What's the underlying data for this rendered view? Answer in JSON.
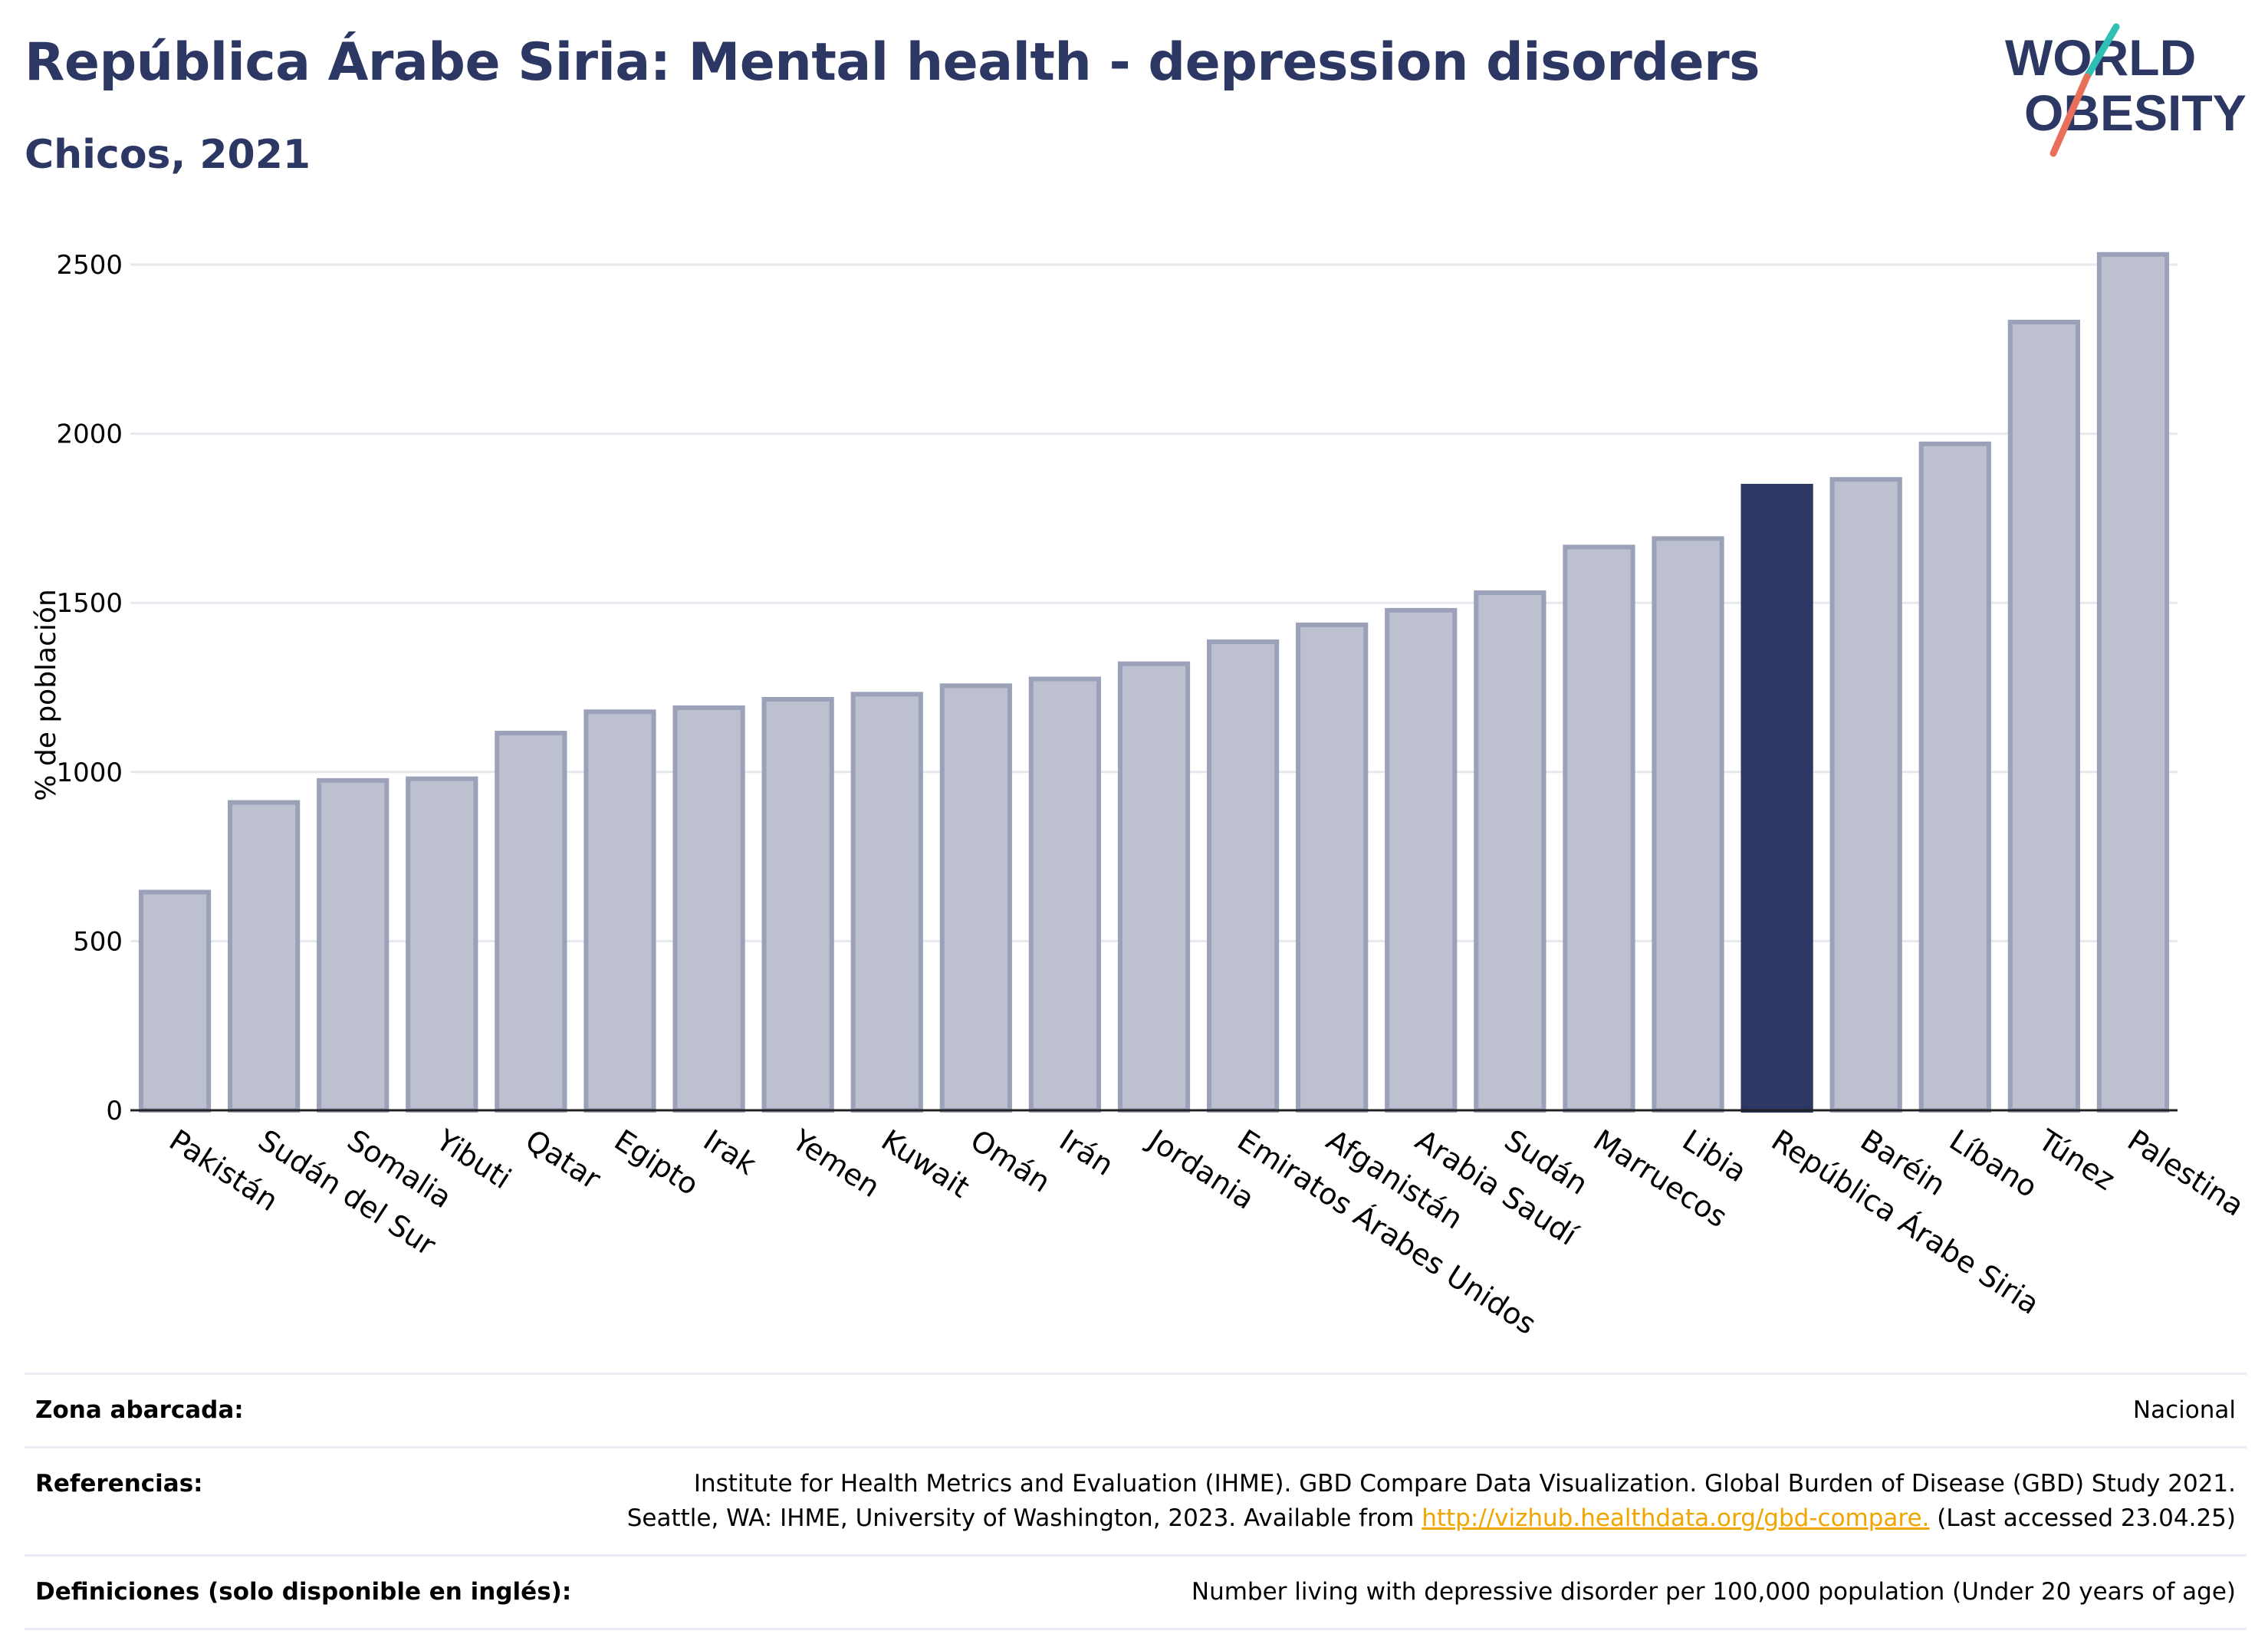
{
  "header": {
    "title": "República Árabe Siria: Mental health - depression disorders",
    "subtitle": "Chicos, 2021"
  },
  "logo": {
    "line1": "WORLD",
    "line2": "OBESITY"
  },
  "colors": {
    "bar": "#bcc0cf",
    "bar_stroke": "#9aa1b9",
    "highlight": "#2c3763",
    "gridline": "#e6e8ee",
    "title": "#2c3763",
    "logo_teal": "#2fbfb5",
    "logo_coral": "#e8705a"
  },
  "chart_data": {
    "type": "bar",
    "title": "República Árabe Siria: Mental health - depression disorders",
    "subtitle": "Chicos, 2021",
    "xlabel": "",
    "ylabel": "% de población",
    "ylim": [
      0,
      2600
    ],
    "yticks": [
      0,
      500,
      1000,
      1500,
      2000,
      2500
    ],
    "grid": true,
    "highlight_category": "República Árabe Siria",
    "categories": [
      "Pakistán",
      "Sudán del Sur",
      "Somalia",
      "Yibuti",
      "Qatar",
      "Egipto",
      "Irak",
      "Yemen",
      "Kuwait",
      "Omán",
      "Irán",
      "Jordania",
      "Emiratos Árabes Unidos",
      "Afganistán",
      "Arabia Saudí",
      "Sudán",
      "Marruecos",
      "Libia",
      "República Árabe Siria",
      "Baréin",
      "Líbano",
      "Túnez",
      "Palestina"
    ],
    "values": [
      645,
      910,
      975,
      980,
      1115,
      1178,
      1190,
      1215,
      1230,
      1255,
      1275,
      1320,
      1385,
      1435,
      1478,
      1530,
      1665,
      1690,
      1845,
      1865,
      1970,
      2330,
      2530
    ]
  },
  "footer": {
    "coverage_label": "Zona abarcada:",
    "coverage_value": "Nacional",
    "references_label": "Referencias:",
    "references_line1": "Institute for Health Metrics and Evaluation (IHME). GBD Compare Data Visualization. Global Burden of Disease (GBD) Study 2021.",
    "references_line2_pre": "Seattle, WA: IHME, University of Washington, 2023. Available from ",
    "references_link": "http://vizhub.healthdata.org/gbd-compare.",
    "references_line2_post": " (Last accessed 23.04.25)",
    "definitions_label": "Definiciones (solo disponible en inglés):",
    "definitions_value": "Number living with depressive disorder per 100,000 population (Under 20 years of age)"
  }
}
